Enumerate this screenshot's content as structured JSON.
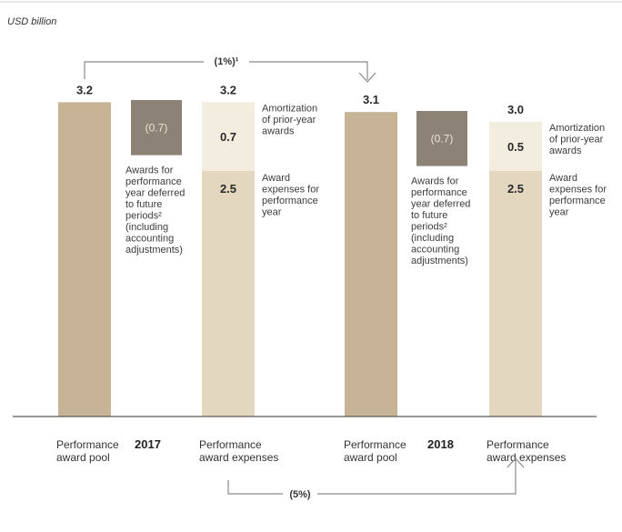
{
  "chart_data": {
    "type": "bar",
    "unit": "USD billion",
    "years": [
      "2017",
      "2018"
    ],
    "groups": [
      {
        "year": "2017",
        "pool": {
          "label": [
            "Performance",
            "award pool"
          ],
          "value": 3.2,
          "value_label": "3.2"
        },
        "deferred": {
          "value": -0.7,
          "value_label": "(0.7)",
          "desc": [
            "Awards for",
            "performance",
            "year deferred",
            "to future",
            "periods²",
            "(including",
            "accounting",
            "adjustments)"
          ]
        },
        "expenses": {
          "label": [
            "Performance",
            "award expenses"
          ],
          "total": 3.2,
          "total_label": "3.2",
          "segments": [
            {
              "name": "Award expenses for performance year",
              "value": 2.5,
              "value_label": "2.5",
              "desc": [
                "Award",
                "expenses for",
                "performance",
                "year"
              ]
            },
            {
              "name": "Amortization of prior-year awards",
              "value": 0.7,
              "value_label": "0.7",
              "desc": [
                "Amortization",
                "of prior-year",
                "awards"
              ]
            }
          ]
        }
      },
      {
        "year": "2018",
        "pool": {
          "label": [
            "Performance",
            "award pool"
          ],
          "value": 3.1,
          "value_label": "3.1"
        },
        "deferred": {
          "value": -0.7,
          "value_label": "(0.7)",
          "desc": [
            "Awards for",
            "performance",
            "year deferred",
            "to future",
            "periods²",
            "(including",
            "accounting",
            "adjustments)"
          ]
        },
        "expenses": {
          "label": [
            "Performance",
            "award expenses"
          ],
          "total": 3.0,
          "total_label": "3.0",
          "segments": [
            {
              "name": "Award expenses for performance year",
              "value": 2.5,
              "value_label": "2.5",
              "desc": [
                "Award",
                "expenses for",
                "performance",
                "year"
              ]
            },
            {
              "name": "Amortization of prior-year awards",
              "value": 0.5,
              "value_label": "0.5",
              "desc": [
                "Amortization",
                "of prior-year",
                "awards"
              ]
            }
          ]
        }
      }
    ],
    "changes": [
      {
        "from": "2017 Performance award pool",
        "to": "2018 Performance award pool",
        "label": "(1%)¹",
        "position": "top"
      },
      {
        "from": "2017 Performance award expenses",
        "to": "2018 Performance award expenses",
        "label": "(5%)",
        "position": "bottom"
      }
    ],
    "colors": {
      "pool": "#c7b496",
      "deferred": "#8c8275",
      "expense_current": "#e3d7c0",
      "expense_prior": "#f3ede0",
      "axis": "#5a5a5a",
      "arrow": "#8a8a8a"
    }
  }
}
